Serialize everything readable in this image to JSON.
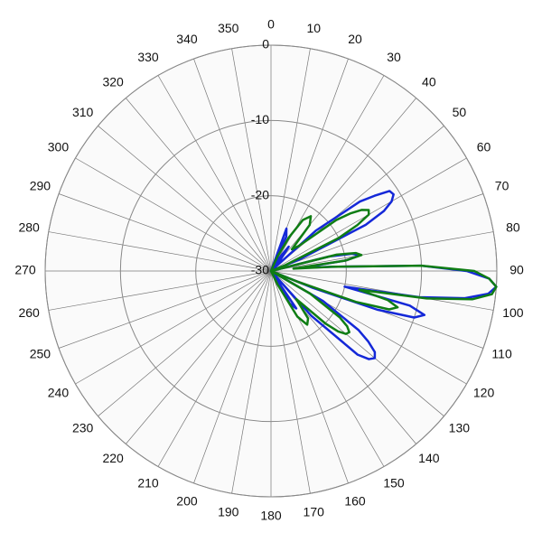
{
  "chart_data": {
    "type": "polar",
    "x": [
      0,
      20,
      24,
      28,
      32,
      36,
      40,
      44,
      48,
      52,
      54,
      56,
      58,
      60,
      62,
      64,
      68,
      72,
      76,
      78,
      80,
      82,
      84,
      86,
      88,
      90,
      92,
      94,
      96,
      98,
      100,
      102,
      104,
      106,
      108,
      110,
      112,
      116,
      120,
      124,
      126,
      128,
      130,
      132,
      134,
      138,
      142,
      146,
      150,
      154,
      158,
      162,
      180,
      270,
      340
    ],
    "series": [
      {
        "color": "#1428d8",
        "values": [
          -30,
          -24,
          -25,
          -30,
          -28,
          -26,
          -28,
          -30,
          -22,
          -15,
          -13,
          -11,
          -10.8,
          -11.5,
          -13,
          -16,
          -26,
          -30,
          -22,
          -19,
          -18,
          -20,
          -26,
          -22,
          -10,
          -4,
          -1,
          0,
          -1,
          -4,
          -10,
          -20,
          -11,
          -8.8,
          -10,
          -15,
          -24,
          -30,
          -22,
          -16,
          -14,
          -12.5,
          -12,
          -12.5,
          -14,
          -22,
          -30,
          -24,
          -25,
          -30,
          -30,
          -30,
          -30,
          -30,
          -30
        ]
      },
      {
        "color": "#0f7d14",
        "values": [
          -30,
          -30,
          -28,
          -25,
          -22,
          -21,
          -22,
          -26,
          -25,
          -19,
          -17,
          -15.5,
          -14.7,
          -15,
          -17,
          -20,
          -28,
          -30,
          -21,
          -18.5,
          -17.8,
          -20,
          -27,
          -22,
          -10,
          -3,
          -1,
          0,
          -0.5,
          -3,
          -9,
          -18,
          -14,
          -12.5,
          -13.5,
          -18,
          -26,
          -30,
          -24,
          -19,
          -17.5,
          -16.8,
          -17,
          -18,
          -20,
          -25,
          -22,
          -21.4,
          -23,
          -28,
          -30,
          -30,
          -30,
          -30,
          -30
        ]
      }
    ],
    "xticks": [
      0,
      10,
      20,
      30,
      40,
      50,
      60,
      70,
      80,
      90,
      100,
      110,
      120,
      130,
      140,
      150,
      160,
      170,
      180,
      190,
      200,
      210,
      220,
      230,
      240,
      250,
      260,
      270,
      280,
      290,
      300,
      310,
      320,
      330,
      340,
      350
    ],
    "ylim": [
      -30,
      0
    ],
    "yticks": [
      0,
      -10,
      -20,
      -30
    ],
    "grid": true
  }
}
